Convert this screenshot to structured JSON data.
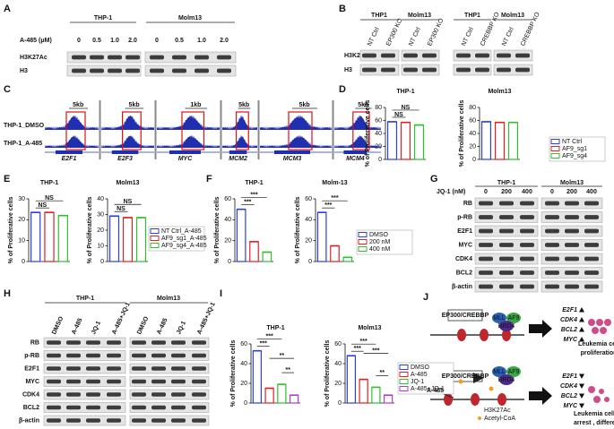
{
  "panels": {
    "A": {
      "letter": "A",
      "groups": [
        "THP-1",
        "Molm13"
      ],
      "dose_label": "A-485 (μM)",
      "doses": [
        "0",
        "0.5",
        "1.0",
        "2.0",
        "0",
        "0.5",
        "1.0",
        "2.0"
      ],
      "rows": [
        "H3K27Ac",
        "H3"
      ]
    },
    "B": {
      "letter": "B",
      "groups": [
        "THP1",
        "Molm13",
        "THP1",
        "Molm13"
      ],
      "lanes": [
        "NT Ctrl",
        "EP300 KO",
        "NT Ctrl",
        "EP300 KO",
        "NT Ctrl",
        "CREBBP KO",
        "NT Ctrl",
        "CREBBP KO"
      ],
      "rows": [
        "H3K27Ac",
        "H3"
      ]
    },
    "C": {
      "letter": "C",
      "tracks": [
        "THP-1_DMSO",
        "THP-1_A-485"
      ],
      "scales": [
        "5kb",
        "5kb",
        "1kb",
        "5kb",
        "5kb",
        "5kb"
      ],
      "genes": [
        "E2F1",
        "E2F3",
        "MYC",
        "MCM2",
        "MCM3",
        "MCM4"
      ]
    },
    "G": {
      "letter": "G",
      "jq_label": "JQ-1 (nM)",
      "groups": [
        "THP-1",
        "Molm13"
      ],
      "doses": [
        "0",
        "200",
        "400",
        "0",
        "200",
        "400"
      ],
      "rows": [
        "RB",
        "p-RB",
        "E2F1",
        "MYC",
        "CDK4",
        "BCL2",
        "β-actin"
      ]
    },
    "H": {
      "letter": "H",
      "groups": [
        "THP-1",
        "Molm13"
      ],
      "lanes": [
        "DMSO",
        "A-485",
        "JQ-1",
        "A-485+JQ-1",
        "DMSO",
        "A-485",
        "JQ-1",
        "A-485+JQ-1"
      ],
      "rows": [
        "RB",
        "p-RB",
        "E2F1",
        "MYC",
        "CDK4",
        "BCL2",
        "β-actin"
      ]
    },
    "J": {
      "letter": "J",
      "complex": "EP300/CREBBP",
      "complex2": "EP300/CREBBP",
      "factors": [
        "MLL",
        "AF9",
        "BRD4"
      ],
      "factors2": [
        "MLL",
        "AF9",
        "BRD4"
      ],
      "genes_top": [
        "E2F1",
        "CDK4",
        "BCL2",
        "MYC"
      ],
      "outcome_top": [
        "Leukemia cell",
        "proliferation"
      ],
      "inhibitor": "A-485",
      "mark": "H3K27Ac",
      "cofactor": "Acetyl-CoA",
      "genes_bottom": [
        "E2F1",
        "CDK4",
        "BCL2",
        "MYC"
      ],
      "outcome_bottom": [
        "Leukemia cell  cycle",
        "arrest , differentiation"
      ]
    }
  },
  "chart_data": [
    {
      "type": "bar",
      "panel": "D",
      "title": "THP-1",
      "ylabel": "% of Proliferative cells",
      "categories": [
        null,
        null,
        null
      ],
      "values": [
        58,
        57,
        53
      ],
      "colors": [
        "#2b3fd9",
        "#e02020",
        "#2fbf2f"
      ],
      "ylim": [
        0,
        80
      ],
      "yticks": [
        0,
        20,
        40,
        60,
        80
      ],
      "annotations": [
        "NS",
        "NS"
      ]
    },
    {
      "type": "bar",
      "title": "Molm13",
      "ylabel": "% of Proliferative cells",
      "categories": [
        null,
        null,
        null
      ],
      "values": [
        58,
        57,
        57
      ],
      "colors": [
        "#2b3fd9",
        "#e02020",
        "#2fbf2f"
      ],
      "ylim": [
        0,
        80
      ],
      "yticks": [
        0,
        20,
        40,
        60,
        80
      ],
      "annotations": [],
      "legend": [
        "NT Ctrl",
        "AF9_sg1",
        "AF9_sg4"
      ]
    },
    {
      "type": "bar",
      "panel": "E",
      "title": "THP-1",
      "ylabel": "% of Proliferative cells",
      "categories": [
        null,
        null,
        null
      ],
      "values": [
        23.5,
        23.5,
        22
      ],
      "colors": [
        "#2b3fd9",
        "#e02020",
        "#2fbf2f"
      ],
      "ylim": [
        0,
        30
      ],
      "yticks": [
        0,
        10,
        20,
        30
      ],
      "annotations": [
        "NS",
        "NS"
      ]
    },
    {
      "type": "bar",
      "title": "Molm13",
      "ylabel": "% of Proliferative cells",
      "categories": [
        null,
        null,
        null
      ],
      "values": [
        29,
        28,
        28
      ],
      "colors": [
        "#2b3fd9",
        "#e02020",
        "#2fbf2f"
      ],
      "ylim": [
        0,
        40
      ],
      "yticks": [
        0,
        10,
        20,
        30,
        40
      ],
      "annotations": [
        "NS",
        "NS"
      ],
      "legend": [
        "NT Ctrl_A-485",
        "AF9_sg1_A-485",
        "AF9_sg4_A-485"
      ]
    },
    {
      "type": "bar",
      "panel": "F",
      "title": "THP-1",
      "ylabel": "% of Proliferative cells",
      "categories": [
        null,
        null,
        null
      ],
      "values": [
        50,
        19,
        9
      ],
      "colors": [
        "#2b3fd9",
        "#e02020",
        "#2fbf2f"
      ],
      "ylim": [
        0,
        60
      ],
      "yticks": [
        0,
        20,
        40,
        60
      ],
      "annotations": [
        "***",
        "***"
      ]
    },
    {
      "type": "bar",
      "title": "Molm-13",
      "ylabel": "% of Proliferative cells",
      "categories": [
        null,
        null,
        null
      ],
      "values": [
        47,
        15,
        4
      ],
      "colors": [
        "#2b3fd9",
        "#e02020",
        "#2fbf2f"
      ],
      "ylim": [
        0,
        60
      ],
      "yticks": [
        0,
        20,
        40,
        60
      ],
      "annotations": [
        "***",
        "***"
      ],
      "legend": [
        "DMSO",
        "200 nM",
        "400 nM"
      ]
    },
    {
      "type": "bar",
      "panel": "I",
      "title": "THP-1",
      "ylabel": "% of Proliferative cells",
      "categories": [
        null,
        null,
        null,
        null
      ],
      "values": [
        53,
        15,
        19,
        8
      ],
      "colors": [
        "#2b3fd9",
        "#e02020",
        "#2fbf2f",
        "#b03ad0"
      ],
      "ylim": [
        0,
        60
      ],
      "yticks": [
        0,
        20,
        40,
        60
      ],
      "annotations": [
        "***",
        "***",
        "**",
        "**"
      ]
    },
    {
      "type": "bar",
      "title": "Molm13",
      "ylabel": "% of Proliferative cells",
      "categories": [
        null,
        null,
        null,
        null
      ],
      "values": [
        48,
        24,
        16,
        8
      ],
      "colors": [
        "#2b3fd9",
        "#e02020",
        "#2fbf2f",
        "#b03ad0"
      ],
      "ylim": [
        0,
        60
      ],
      "yticks": [
        0,
        20,
        40,
        60
      ],
      "annotations": [
        "***",
        "***",
        "**",
        "***"
      ],
      "legend": [
        "DMSO",
        "A-485",
        "JQ-1",
        "A-485+JQ-1"
      ]
    }
  ]
}
